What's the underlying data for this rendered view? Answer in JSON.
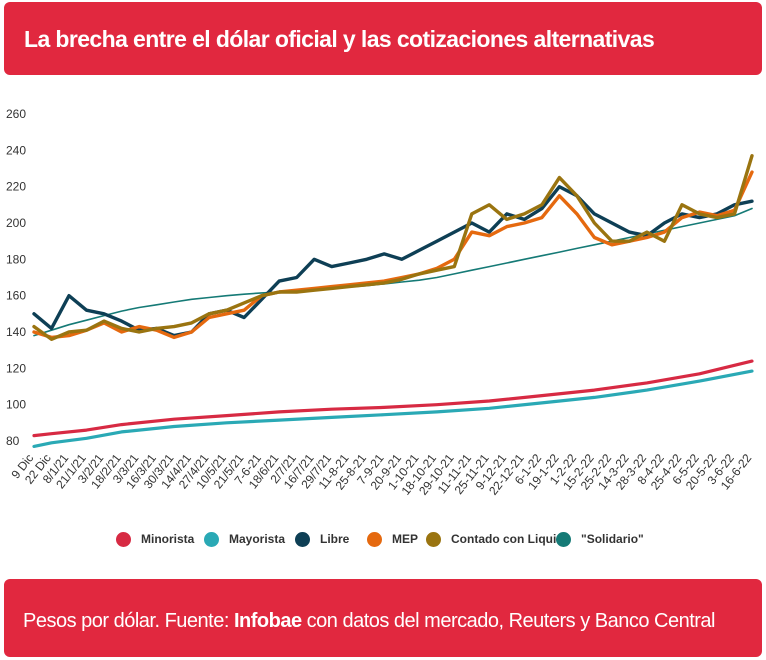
{
  "header": {
    "title": "La brecha entre el dólar oficial y las cotizaciones alternativas"
  },
  "footer": {
    "prefix": "Pesos por dólar. Fuente: ",
    "brand": "Infobae",
    "suffix": " con datos del mercado, Reuters y Banco Central"
  },
  "colors": {
    "header_bg": "#e1283f",
    "Minorista": "#d72a43",
    "Mayorista": "#2aa9b5",
    "Libre": "#0e3f55",
    "MEP": "#e5690f",
    "Contado con Liqui": "#9a7410",
    "Solidario": "#157a76"
  },
  "chart_data": {
    "type": "line",
    "ylim": [
      80,
      260
    ],
    "yticks": [
      80,
      100,
      120,
      140,
      160,
      180,
      200,
      220,
      240,
      260
    ],
    "x_tick_labels": [
      "9 Dic",
      "22 Dic",
      "8/1/21",
      "21/1/21",
      "3/2/21",
      "18/2/21",
      "3/3/21",
      "16/3/21",
      "30/3/21",
      "14/4/21",
      "27/4/21",
      "10/5/21",
      "21/5/21",
      "7-6-21",
      "18/6/21",
      "2/7/21",
      "16/7/21",
      "29/7/21",
      "11-8-21",
      "25-8-21",
      "7-9-21",
      "20-9-21",
      "1-10-21",
      "18-10-21",
      "29-10-21",
      "11-11-21",
      "25-11-21",
      "9-12-21",
      "22-12-21",
      "6-1-22",
      "19-1-22",
      "1-2-22",
      "15-2-22",
      "25-2-22",
      "14-3-22",
      "28-3-22",
      "8-4-22",
      "25-4-22",
      "6-5-22",
      "20-5-22",
      "3-6-22",
      "16-6-22"
    ],
    "legend": [
      "Minorista",
      "Mayorista",
      "Libre",
      "MEP",
      "Contado con Liqui",
      "\"Solidario\""
    ],
    "legend_position": "bottom",
    "grid": false,
    "series": [
      {
        "name": "Minorista",
        "color": "#d72a43",
        "x": [
          "9 Dic",
          "22 Dic",
          "21/1/21",
          "18/2/21",
          "30/3/21",
          "10/5/21",
          "18/6/21",
          "29/7/21",
          "7-9-21",
          "18-10-21",
          "25-11-21",
          "6-1-22",
          "15-2-22",
          "28-3-22",
          "6-5-22",
          "16-6-22"
        ],
        "values": [
          83,
          84,
          86,
          89,
          92,
          94,
          96,
          97.5,
          98.5,
          100,
          102,
          105,
          108,
          112,
          117,
          124
        ]
      },
      {
        "name": "Mayorista",
        "color": "#2aa9b5",
        "x": [
          "9 Dic",
          "22 Dic",
          "21/1/21",
          "18/2/21",
          "30/3/21",
          "10/5/21",
          "18/6/21",
          "29/7/21",
          "7-9-21",
          "18-10-21",
          "25-11-21",
          "6-1-22",
          "15-2-22",
          "28-3-22",
          "6-5-22",
          "16-6-22"
        ],
        "values": [
          77,
          79,
          81.5,
          85,
          88,
          90,
          91.5,
          93,
          94.5,
          96,
          98,
          101,
          104,
          108,
          113,
          118.5
        ]
      },
      {
        "name": "Libre",
        "color": "#0e3f55",
        "x": [
          "9 Dic",
          "22 Dic",
          "8/1/21",
          "21/1/21",
          "3/2/21",
          "18/2/21",
          "3/3/21",
          "16/3/21",
          "30/3/21",
          "14/4/21",
          "27/4/21",
          "10/5/21",
          "21/5/21",
          "7-6-21",
          "18/6/21",
          "2/7/21",
          "16/7/21",
          "29/7/21",
          "11-8-21",
          "25-8-21",
          "7-9-21",
          "20-9-21",
          "1-10-21",
          "18-10-21",
          "29-10-21",
          "11-11-21",
          "25-11-21",
          "9-12-21",
          "22-12-21",
          "6-1-22",
          "19-1-22",
          "1-2-22",
          "15-2-22",
          "25-2-22",
          "14-3-22",
          "28-3-22",
          "8-4-22",
          "25-4-22",
          "6-5-22",
          "20-5-22",
          "3-6-22",
          "16-6-22"
        ],
        "values": [
          150,
          142,
          160,
          152,
          150,
          146,
          141,
          142,
          138,
          140,
          150,
          152,
          148,
          158,
          168,
          170,
          180,
          176,
          178,
          180,
          183,
          180,
          185,
          190,
          195,
          200,
          195,
          205,
          202,
          208,
          220,
          215,
          205,
          200,
          195,
          193,
          200,
          205,
          203,
          205,
          210,
          212
        ]
      },
      {
        "name": "MEP",
        "color": "#e5690f",
        "x": [
          "9 Dic",
          "22 Dic",
          "8/1/21",
          "21/1/21",
          "3/2/21",
          "18/2/21",
          "3/3/21",
          "16/3/21",
          "30/3/21",
          "14/4/21",
          "27/4/21",
          "10/5/21",
          "21/5/21",
          "7-6-21",
          "18/6/21",
          "2/7/21",
          "16/7/21",
          "29/7/21",
          "11-8-21",
          "25-8-21",
          "7-9-21",
          "20-9-21",
          "1-10-21",
          "18-10-21",
          "29-10-21",
          "11-11-21",
          "25-11-21",
          "9-12-21",
          "22-12-21",
          "6-1-22",
          "19-1-22",
          "1-2-22",
          "15-2-22",
          "25-2-22",
          "14-3-22",
          "28-3-22",
          "8-4-22",
          "25-4-22",
          "6-5-22",
          "20-5-22",
          "3-6-22",
          "16-6-22"
        ],
        "values": [
          140,
          137,
          138,
          141,
          145,
          140,
          143,
          141,
          137,
          140,
          148,
          150,
          152,
          160,
          162,
          163,
          164,
          165,
          166,
          167,
          168,
          170,
          172,
          175,
          180,
          195,
          193,
          198,
          200,
          203,
          215,
          205,
          192,
          188,
          190,
          192,
          195,
          203,
          206,
          204,
          207,
          228
        ]
      },
      {
        "name": "Contado con Liqui",
        "color": "#9a7410",
        "x": [
          "9 Dic",
          "22 Dic",
          "8/1/21",
          "21/1/21",
          "3/2/21",
          "18/2/21",
          "3/3/21",
          "16/3/21",
          "30/3/21",
          "14/4/21",
          "27/4/21",
          "10/5/21",
          "21/5/21",
          "7-6-21",
          "18/6/21",
          "2/7/21",
          "16/7/21",
          "29/7/21",
          "11-8-21",
          "25-8-21",
          "7-9-21",
          "20-9-21",
          "1-10-21",
          "18-10-21",
          "29-10-21",
          "11-11-21",
          "25-11-21",
          "9-12-21",
          "22-12-21",
          "6-1-22",
          "19-1-22",
          "1-2-22",
          "15-2-22",
          "25-2-22",
          "14-3-22",
          "28-3-22",
          "8-4-22",
          "25-4-22",
          "6-5-22",
          "20-5-22",
          "3-6-22",
          "16-6-22"
        ],
        "values": [
          143,
          136,
          140,
          141,
          146,
          142,
          140,
          142,
          143,
          145,
          150,
          152,
          156,
          160,
          162,
          162,
          163,
          164,
          165,
          166,
          167,
          169,
          172,
          174,
          176,
          205,
          210,
          202,
          205,
          210,
          225,
          215,
          200,
          190,
          190,
          195,
          190,
          210,
          205,
          203,
          205,
          237
        ]
      },
      {
        "name": "\"Solidario\"",
        "color": "#157a76",
        "x": [
          "9 Dic",
          "22 Dic",
          "8/1/21",
          "21/1/21",
          "3/2/21",
          "18/2/21",
          "3/3/21",
          "16/3/21",
          "30/3/21",
          "14/4/21",
          "27/4/21",
          "10/5/21",
          "21/5/21",
          "7-6-21",
          "18/6/21",
          "2/7/21",
          "16/7/21",
          "29/7/21",
          "11-8-21",
          "25-8-21",
          "7-9-21",
          "20-9-21",
          "1-10-21",
          "18-10-21",
          "29-10-21",
          "11-11-21",
          "25-11-21",
          "9-12-21",
          "22-12-21",
          "6-1-22",
          "19-1-22",
          "1-2-22",
          "15-2-22",
          "25-2-22",
          "14-3-22",
          "28-3-22",
          "8-4-22",
          "25-4-22",
          "6-5-22",
          "20-5-22",
          "3-6-22",
          "16-6-22"
        ],
        "values": [
          138,
          141,
          144,
          146.5,
          149,
          151.5,
          153.5,
          155,
          156.5,
          158,
          159,
          160,
          160.8,
          161.5,
          162,
          162.8,
          163.5,
          164,
          164.8,
          165.5,
          166.5,
          167.5,
          168.5,
          170,
          172,
          174,
          176,
          178,
          180,
          182,
          184,
          186,
          188,
          190,
          192,
          194,
          196,
          198,
          200,
          202,
          204,
          208
        ]
      }
    ]
  }
}
